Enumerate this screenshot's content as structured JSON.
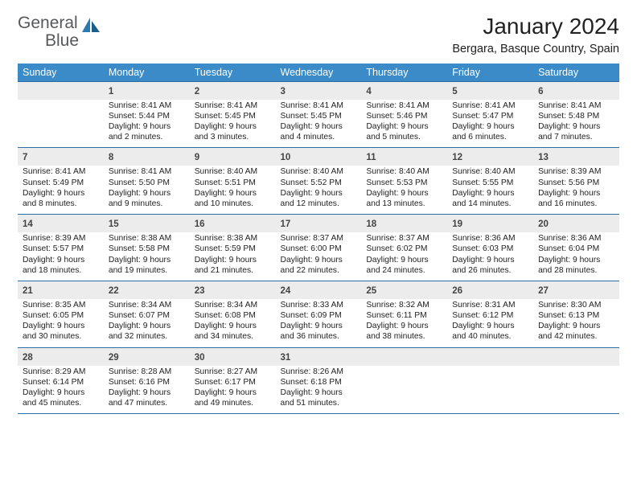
{
  "logo": {
    "word1": "General",
    "word2": "Blue"
  },
  "title": "January 2024",
  "location": "Bergara, Basque Country, Spain",
  "colors": {
    "header_bg": "#3a8bc8",
    "header_text": "#ffffff",
    "daynum_bg": "#ececec",
    "border": "#2e6da4",
    "logo_gray": "#56585a",
    "logo_blue": "#2a7ab0"
  },
  "weekdays": [
    "Sunday",
    "Monday",
    "Tuesday",
    "Wednesday",
    "Thursday",
    "Friday",
    "Saturday"
  ],
  "weeks": [
    [
      {
        "empty": true
      },
      {
        "n": "1",
        "sr": "Sunrise: 8:41 AM",
        "ss": "Sunset: 5:44 PM",
        "dl": "Daylight: 9 hours and 2 minutes."
      },
      {
        "n": "2",
        "sr": "Sunrise: 8:41 AM",
        "ss": "Sunset: 5:45 PM",
        "dl": "Daylight: 9 hours and 3 minutes."
      },
      {
        "n": "3",
        "sr": "Sunrise: 8:41 AM",
        "ss": "Sunset: 5:45 PM",
        "dl": "Daylight: 9 hours and 4 minutes."
      },
      {
        "n": "4",
        "sr": "Sunrise: 8:41 AM",
        "ss": "Sunset: 5:46 PM",
        "dl": "Daylight: 9 hours and 5 minutes."
      },
      {
        "n": "5",
        "sr": "Sunrise: 8:41 AM",
        "ss": "Sunset: 5:47 PM",
        "dl": "Daylight: 9 hours and 6 minutes."
      },
      {
        "n": "6",
        "sr": "Sunrise: 8:41 AM",
        "ss": "Sunset: 5:48 PM",
        "dl": "Daylight: 9 hours and 7 minutes."
      }
    ],
    [
      {
        "n": "7",
        "sr": "Sunrise: 8:41 AM",
        "ss": "Sunset: 5:49 PM",
        "dl": "Daylight: 9 hours and 8 minutes."
      },
      {
        "n": "8",
        "sr": "Sunrise: 8:41 AM",
        "ss": "Sunset: 5:50 PM",
        "dl": "Daylight: 9 hours and 9 minutes."
      },
      {
        "n": "9",
        "sr": "Sunrise: 8:40 AM",
        "ss": "Sunset: 5:51 PM",
        "dl": "Daylight: 9 hours and 10 minutes."
      },
      {
        "n": "10",
        "sr": "Sunrise: 8:40 AM",
        "ss": "Sunset: 5:52 PM",
        "dl": "Daylight: 9 hours and 12 minutes."
      },
      {
        "n": "11",
        "sr": "Sunrise: 8:40 AM",
        "ss": "Sunset: 5:53 PM",
        "dl": "Daylight: 9 hours and 13 minutes."
      },
      {
        "n": "12",
        "sr": "Sunrise: 8:40 AM",
        "ss": "Sunset: 5:55 PM",
        "dl": "Daylight: 9 hours and 14 minutes."
      },
      {
        "n": "13",
        "sr": "Sunrise: 8:39 AM",
        "ss": "Sunset: 5:56 PM",
        "dl": "Daylight: 9 hours and 16 minutes."
      }
    ],
    [
      {
        "n": "14",
        "sr": "Sunrise: 8:39 AM",
        "ss": "Sunset: 5:57 PM",
        "dl": "Daylight: 9 hours and 18 minutes."
      },
      {
        "n": "15",
        "sr": "Sunrise: 8:38 AM",
        "ss": "Sunset: 5:58 PM",
        "dl": "Daylight: 9 hours and 19 minutes."
      },
      {
        "n": "16",
        "sr": "Sunrise: 8:38 AM",
        "ss": "Sunset: 5:59 PM",
        "dl": "Daylight: 9 hours and 21 minutes."
      },
      {
        "n": "17",
        "sr": "Sunrise: 8:37 AM",
        "ss": "Sunset: 6:00 PM",
        "dl": "Daylight: 9 hours and 22 minutes."
      },
      {
        "n": "18",
        "sr": "Sunrise: 8:37 AM",
        "ss": "Sunset: 6:02 PM",
        "dl": "Daylight: 9 hours and 24 minutes."
      },
      {
        "n": "19",
        "sr": "Sunrise: 8:36 AM",
        "ss": "Sunset: 6:03 PM",
        "dl": "Daylight: 9 hours and 26 minutes."
      },
      {
        "n": "20",
        "sr": "Sunrise: 8:36 AM",
        "ss": "Sunset: 6:04 PM",
        "dl": "Daylight: 9 hours and 28 minutes."
      }
    ],
    [
      {
        "n": "21",
        "sr": "Sunrise: 8:35 AM",
        "ss": "Sunset: 6:05 PM",
        "dl": "Daylight: 9 hours and 30 minutes."
      },
      {
        "n": "22",
        "sr": "Sunrise: 8:34 AM",
        "ss": "Sunset: 6:07 PM",
        "dl": "Daylight: 9 hours and 32 minutes."
      },
      {
        "n": "23",
        "sr": "Sunrise: 8:34 AM",
        "ss": "Sunset: 6:08 PM",
        "dl": "Daylight: 9 hours and 34 minutes."
      },
      {
        "n": "24",
        "sr": "Sunrise: 8:33 AM",
        "ss": "Sunset: 6:09 PM",
        "dl": "Daylight: 9 hours and 36 minutes."
      },
      {
        "n": "25",
        "sr": "Sunrise: 8:32 AM",
        "ss": "Sunset: 6:11 PM",
        "dl": "Daylight: 9 hours and 38 minutes."
      },
      {
        "n": "26",
        "sr": "Sunrise: 8:31 AM",
        "ss": "Sunset: 6:12 PM",
        "dl": "Daylight: 9 hours and 40 minutes."
      },
      {
        "n": "27",
        "sr": "Sunrise: 8:30 AM",
        "ss": "Sunset: 6:13 PM",
        "dl": "Daylight: 9 hours and 42 minutes."
      }
    ],
    [
      {
        "n": "28",
        "sr": "Sunrise: 8:29 AM",
        "ss": "Sunset: 6:14 PM",
        "dl": "Daylight: 9 hours and 45 minutes."
      },
      {
        "n": "29",
        "sr": "Sunrise: 8:28 AM",
        "ss": "Sunset: 6:16 PM",
        "dl": "Daylight: 9 hours and 47 minutes."
      },
      {
        "n": "30",
        "sr": "Sunrise: 8:27 AM",
        "ss": "Sunset: 6:17 PM",
        "dl": "Daylight: 9 hours and 49 minutes."
      },
      {
        "n": "31",
        "sr": "Sunrise: 8:26 AM",
        "ss": "Sunset: 6:18 PM",
        "dl": "Daylight: 9 hours and 51 minutes."
      },
      {
        "empty": true
      },
      {
        "empty": true
      },
      {
        "empty": true
      }
    ]
  ]
}
